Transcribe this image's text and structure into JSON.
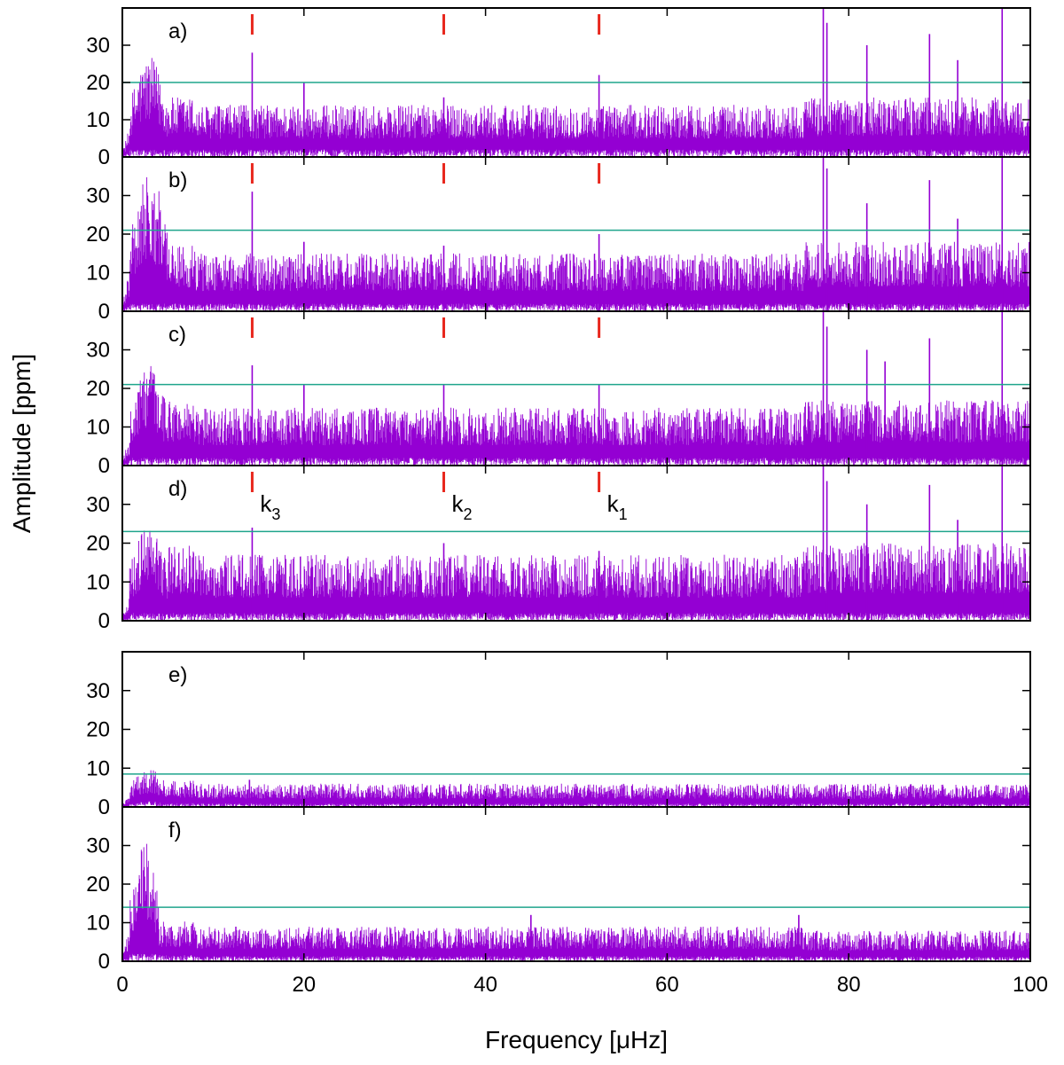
{
  "chart_data": {
    "type": "line",
    "x_axis": {
      "label": "Frequency [μHz]",
      "lim": [
        0,
        100
      ],
      "ticks": [
        0,
        20,
        40,
        60,
        80,
        100
      ],
      "tick_labels": [
        "0",
        "20",
        "40",
        "60",
        "80",
        "100"
      ]
    },
    "y_axis": {
      "label": "Amplitude [ppm]",
      "lim": [
        0,
        40
      ],
      "ticks": [
        0,
        10,
        20,
        30
      ],
      "tick_labels": [
        "0",
        "10",
        "20",
        "30"
      ]
    },
    "colors": {
      "spectrum": "#9400d3",
      "threshold": "#1fa58c",
      "marker": "#e8281e",
      "frame": "#000000"
    },
    "markers": [
      {
        "name": "k_3",
        "base": "k",
        "sub": "3",
        "frequency": 14.3
      },
      {
        "name": "k_2",
        "base": "k",
        "sub": "2",
        "frequency": 35.4
      },
      {
        "name": "k_1",
        "base": "k",
        "sub": "1",
        "frequency": 52.5
      }
    ],
    "panels": [
      {
        "label": "a)",
        "threshold": 20,
        "show_markers": true,
        "show_marker_labels": false,
        "low_freq_hump": {
          "end": 5,
          "peak": 27
        },
        "base_max": 14,
        "high_freq_base_max": 16,
        "peaks": [
          [
            14.3,
            28
          ],
          [
            20.0,
            20
          ],
          [
            35.4,
            16
          ],
          [
            52.5,
            22
          ],
          [
            77.2,
            40
          ],
          [
            77.6,
            36
          ],
          [
            82.0,
            30
          ],
          [
            88.9,
            33
          ],
          [
            92.0,
            26
          ],
          [
            96.9,
            40
          ]
        ]
      },
      {
        "label": "b)",
        "threshold": 21,
        "show_markers": true,
        "show_marker_labels": false,
        "low_freq_hump": {
          "end": 5,
          "peak": 37
        },
        "base_max": 15,
        "high_freq_base_max": 18,
        "peaks": [
          [
            14.3,
            31
          ],
          [
            20.0,
            18
          ],
          [
            35.4,
            17
          ],
          [
            52.5,
            20
          ],
          [
            77.2,
            40
          ],
          [
            77.6,
            37
          ],
          [
            82.0,
            28
          ],
          [
            88.9,
            34
          ],
          [
            92.0,
            24
          ],
          [
            96.9,
            40
          ]
        ]
      },
      {
        "label": "c)",
        "threshold": 21,
        "show_markers": true,
        "show_marker_labels": false,
        "low_freq_hump": {
          "end": 5,
          "peak": 26
        },
        "base_max": 15,
        "high_freq_base_max": 17,
        "peaks": [
          [
            14.3,
            26
          ],
          [
            20.0,
            21
          ],
          [
            35.4,
            21
          ],
          [
            52.5,
            21
          ],
          [
            77.2,
            40
          ],
          [
            77.6,
            36
          ],
          [
            82.0,
            30
          ],
          [
            84.0,
            27
          ],
          [
            88.9,
            33
          ],
          [
            96.9,
            40
          ]
        ]
      },
      {
        "label": "d)",
        "threshold": 23,
        "show_markers": true,
        "show_marker_labels": true,
        "low_freq_hump": {
          "end": 5,
          "peak": 25
        },
        "base_max": 17,
        "high_freq_base_max": 20,
        "peaks": [
          [
            14.3,
            24
          ],
          [
            35.4,
            20
          ],
          [
            52.5,
            18
          ],
          [
            77.2,
            40
          ],
          [
            77.6,
            36
          ],
          [
            82.0,
            30
          ],
          [
            88.9,
            35
          ],
          [
            92.0,
            26
          ],
          [
            96.9,
            40
          ]
        ]
      },
      {
        "label": "e)",
        "threshold": 8.5,
        "show_markers": false,
        "show_marker_labels": false,
        "low_freq_hump": {
          "end": 5,
          "peak": 10
        },
        "base_max": 6,
        "high_freq_base_max": 6,
        "peaks": [
          [
            14.0,
            7
          ]
        ]
      },
      {
        "label": "f)",
        "threshold": 14,
        "show_markers": false,
        "show_marker_labels": false,
        "low_freq_hump": {
          "end": 4,
          "peak": 31
        },
        "base_max": 9,
        "high_freq_base_max": 8,
        "peaks": [
          [
            45.0,
            12
          ],
          [
            74.5,
            12
          ]
        ]
      }
    ]
  }
}
